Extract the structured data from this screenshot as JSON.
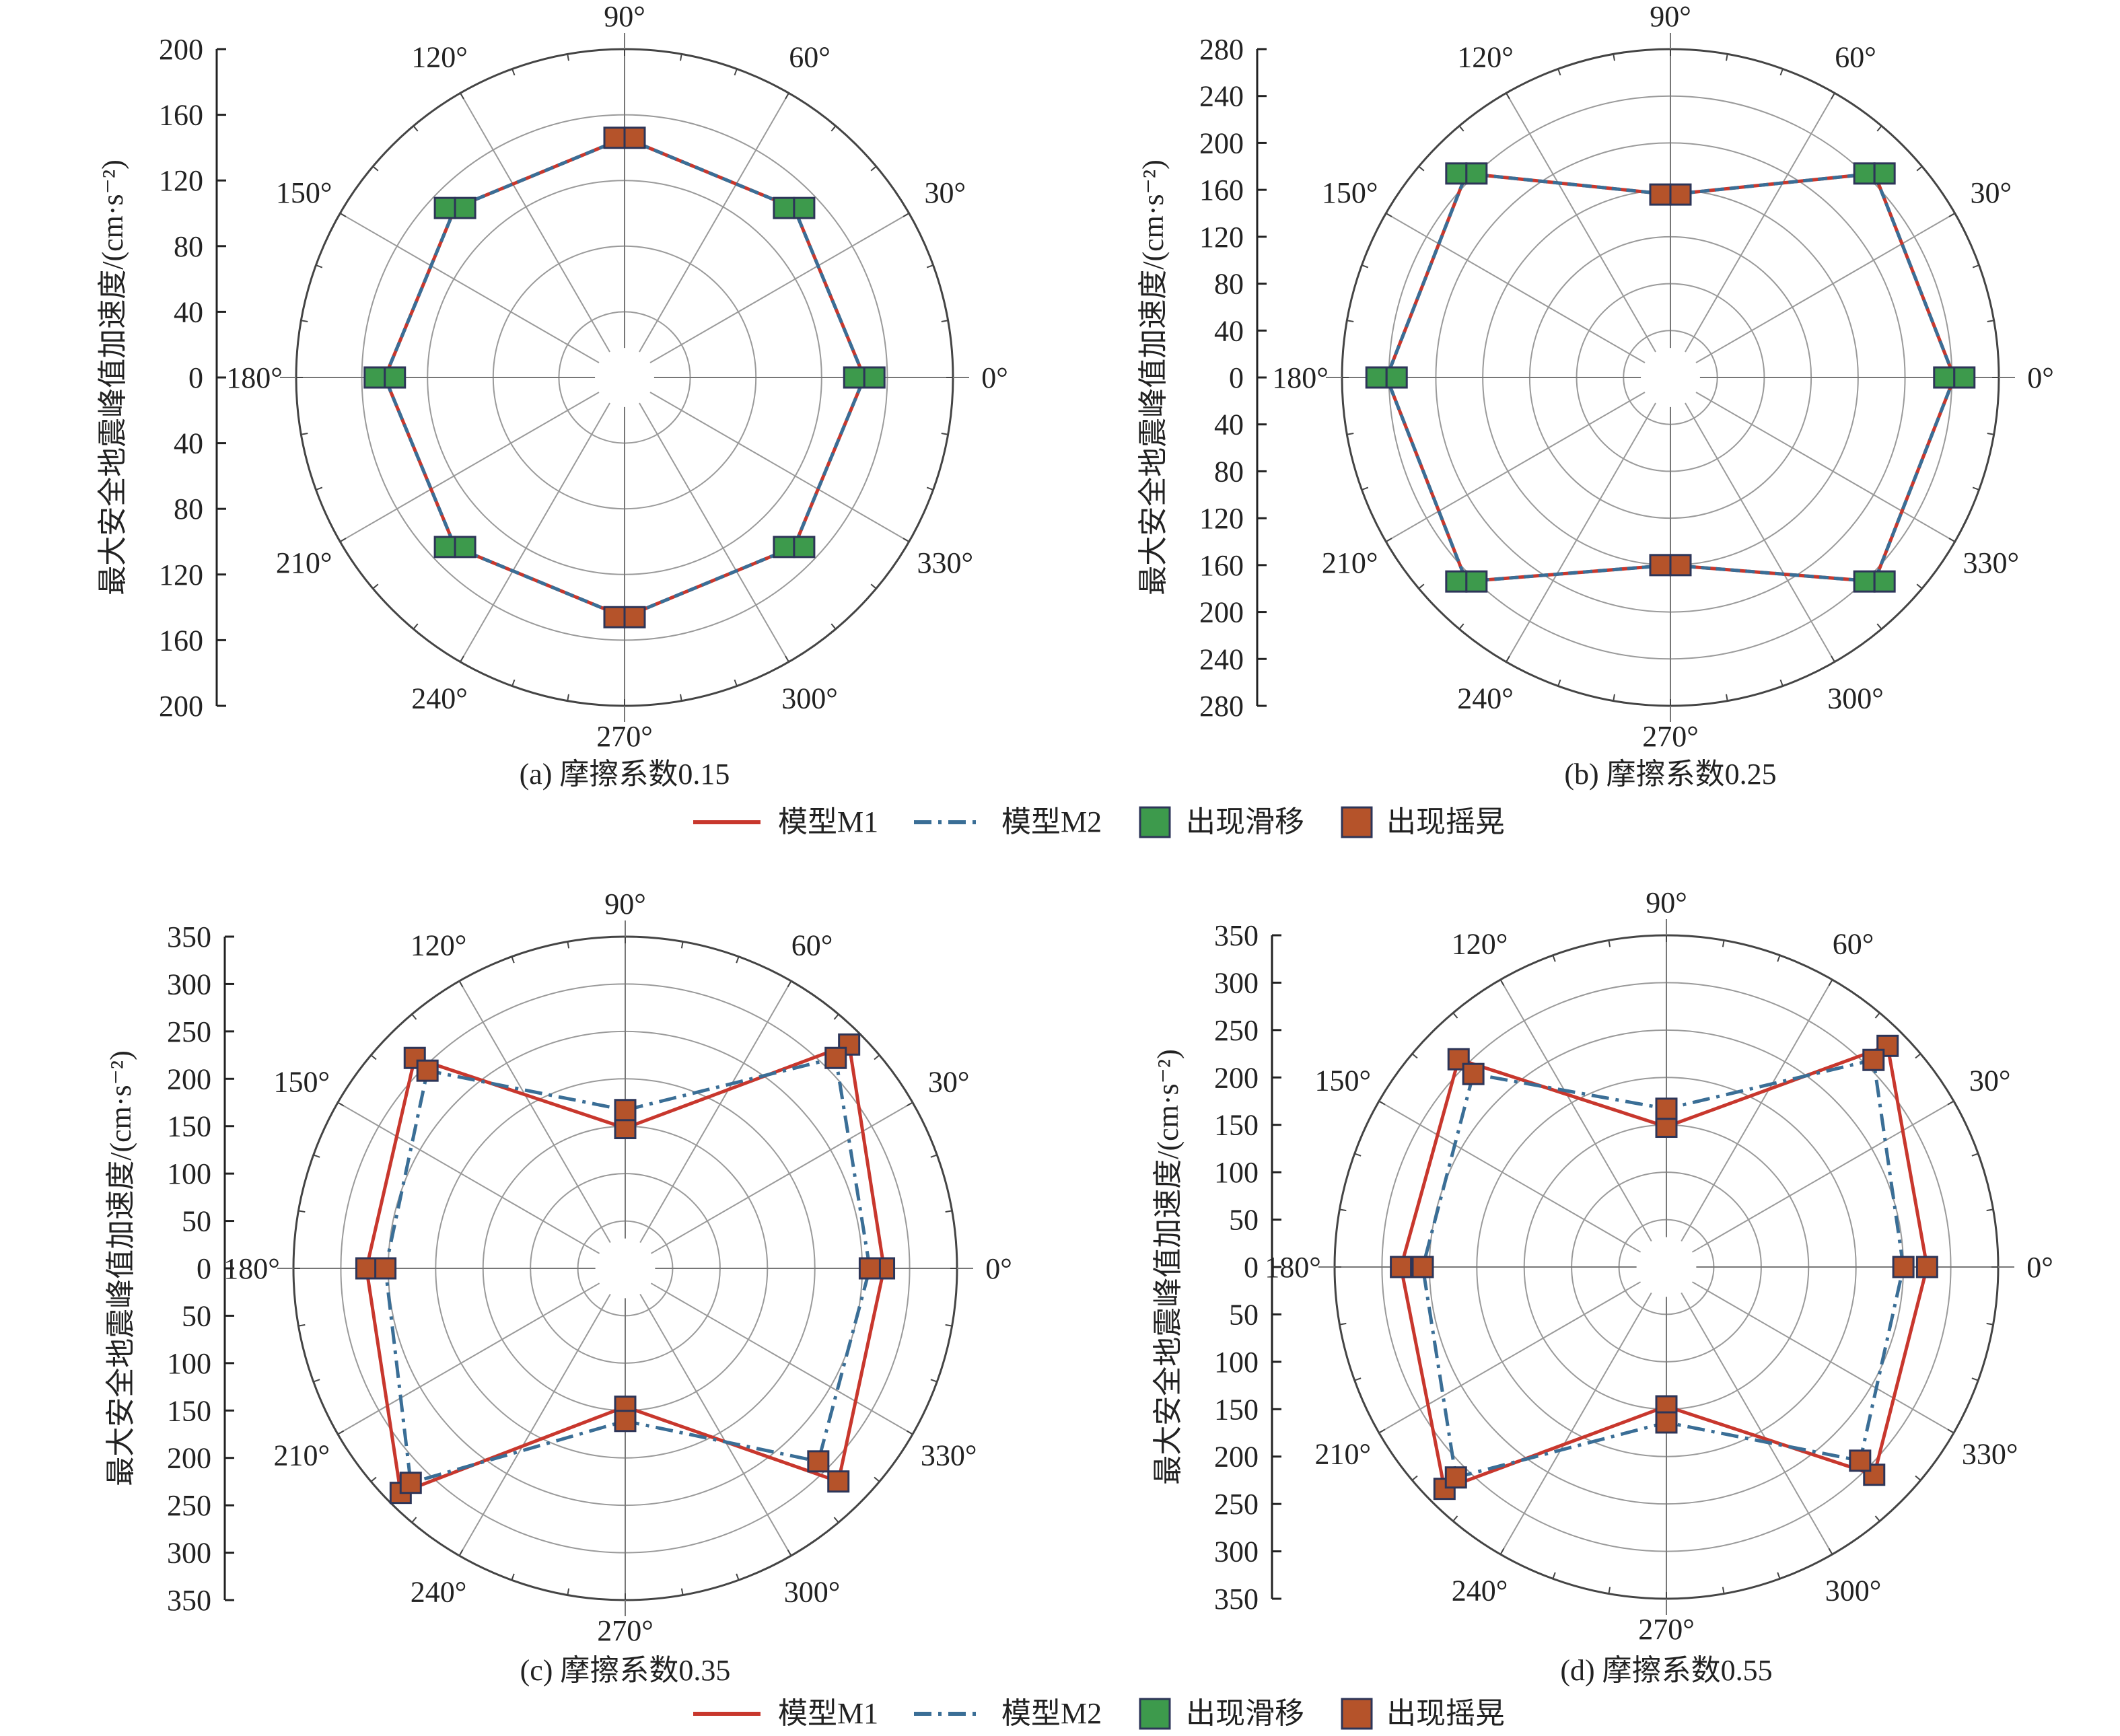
{
  "y_axis_title": "最大安全地震峰值加速度/(cm·s⁻²)",
  "legend": {
    "m1": "模型M1",
    "m2": "模型M2",
    "slide": "出现滑移",
    "rock": "出现摇晃"
  },
  "colors": {
    "m1": "#c8372d",
    "m2": "#3a6e96",
    "slide": "#3d9a4c",
    "rock": "#b5532a",
    "marker_edge": "#2d3558",
    "grid": "#9a9a9a"
  },
  "chart_data": [
    {
      "type": "polar-line",
      "caption": "(a) 摩擦系数0.15",
      "rmax": 200,
      "rings": [
        40,
        80,
        120,
        160,
        200
      ],
      "y_ticks": [
        "200",
        "160",
        "120",
        "80",
        "40",
        "0",
        "40",
        "80",
        "120",
        "160",
        "200"
      ],
      "angle_labels": [
        "0°",
        "30°",
        "60°",
        "90°",
        "120°",
        "150°",
        "180°",
        "210°",
        "240°",
        "270°",
        "300°",
        "330°"
      ],
      "theta": [
        0,
        45,
        90,
        135,
        180,
        225,
        270,
        315
      ],
      "series": [
        {
          "name": "模型M1",
          "values": [
            146,
            146,
            146,
            146,
            146,
            146,
            146,
            146
          ]
        },
        {
          "name": "模型M2",
          "values": [
            146,
            146,
            146,
            146,
            146,
            146,
            146,
            146
          ]
        }
      ],
      "marker_state": [
        "slide",
        "slide",
        "rock",
        "slide",
        "slide",
        "slide",
        "rock",
        "slide"
      ]
    },
    {
      "type": "polar-line",
      "caption": "(b) 摩擦系数0.25",
      "rmax": 280,
      "rings": [
        40,
        80,
        120,
        160,
        200,
        240,
        280
      ],
      "y_ticks": [
        "280",
        "240",
        "200",
        "160",
        "120",
        "80",
        "40",
        "0",
        "40",
        "80",
        "120",
        "160",
        "200",
        "240",
        "280"
      ],
      "angle_labels": [
        "0°",
        "30°",
        "60°",
        "90°",
        "120°",
        "150°",
        "180°",
        "210°",
        "240°",
        "270°",
        "300°",
        "330°"
      ],
      "theta": [
        0,
        45,
        90,
        135,
        180,
        225,
        270,
        315
      ],
      "series": [
        {
          "name": "模型M1",
          "values": [
            242,
            246,
            156,
            246,
            242,
            246,
            160,
            246
          ]
        },
        {
          "name": "模型M2",
          "values": [
            242,
            246,
            156,
            246,
            242,
            246,
            160,
            246
          ]
        }
      ],
      "marker_state": [
        "slide",
        "slide",
        "rock",
        "slide",
        "slide",
        "slide",
        "rock",
        "slide"
      ]
    },
    {
      "type": "polar-line",
      "caption": "(c) 摩擦系数0.35",
      "rmax": 350,
      "rings": [
        50,
        100,
        150,
        200,
        250,
        300,
        350
      ],
      "y_ticks": [
        "350",
        "300",
        "250",
        "200",
        "150",
        "100",
        "50",
        "0",
        "50",
        "100",
        "150",
        "200",
        "250",
        "300",
        "350"
      ],
      "angle_labels": [
        "0°",
        "30°",
        "60°",
        "90°",
        "120°",
        "150°",
        "180°",
        "210°",
        "240°",
        "270°",
        "300°",
        "330°"
      ],
      "theta": [
        0,
        45,
        90,
        135,
        180,
        225,
        270,
        315
      ],
      "series": [
        {
          "name": "模型M1",
          "values": [
            273,
            334,
            148,
            314,
            273,
            335,
            146,
            318
          ]
        },
        {
          "name": "模型M2",
          "values": [
            258,
            314,
            167,
            295,
            253,
            320,
            161,
            288
          ]
        }
      ],
      "marker_state": [
        "rock",
        "rock",
        "rock",
        "rock",
        "rock",
        "rock",
        "rock",
        "rock"
      ]
    },
    {
      "type": "polar-line",
      "caption": "(d) 摩擦系数0.55",
      "rmax": 350,
      "rings": [
        50,
        100,
        150,
        200,
        250,
        300,
        350
      ],
      "y_ticks": [
        "350",
        "300",
        "250",
        "200",
        "150",
        "100",
        "50",
        "0",
        "50",
        "100",
        "150",
        "200",
        "250",
        "300",
        "350"
      ],
      "angle_labels": [
        "0°",
        "30°",
        "60°",
        "90°",
        "120°",
        "150°",
        "180°",
        "210°",
        "240°",
        "270°",
        "300°",
        "330°"
      ],
      "theta": [
        0,
        45,
        90,
        135,
        180,
        225,
        270,
        315
      ],
      "series": [
        {
          "name": "模型M1",
          "values": [
            275,
            330,
            148,
            310,
            280,
            331,
            147,
            310
          ]
        },
        {
          "name": "模型M2",
          "values": [
            250,
            309,
            167,
            288,
            257,
            314,
            164,
            289
          ]
        }
      ],
      "marker_state": [
        "rock",
        "rock",
        "rock",
        "rock",
        "rock",
        "rock",
        "rock",
        "rock"
      ]
    }
  ]
}
